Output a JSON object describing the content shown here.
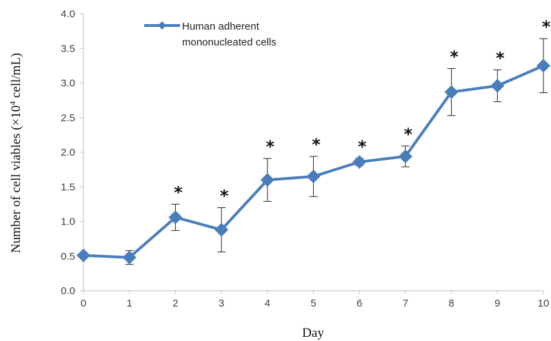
{
  "chart_data": {
    "type": "line",
    "title": "",
    "xlabel": "Day",
    "ylabel_prefix": "Number of cell viables (×10",
    "ylabel_sup": "4",
    "ylabel_suffix": " cell/mL)",
    "x": [
      0,
      1,
      2,
      3,
      4,
      5,
      6,
      7,
      8,
      9,
      10
    ],
    "xlim": [
      0,
      10
    ],
    "ylim": [
      0,
      4.0
    ],
    "x_ticks": [
      "0",
      "1",
      "2",
      "3",
      "4",
      "5",
      "6",
      "7",
      "8",
      "9",
      "10"
    ],
    "y_ticks": [
      "0.0",
      "0.5",
      "1.0",
      "1.5",
      "2.0",
      "2.5",
      "3.0",
      "3.5",
      "4.0"
    ],
    "grid": false,
    "legend_position": "top-left",
    "significance_marker": "*",
    "series": [
      {
        "name": "Human adherent mononucleated cells",
        "legend_lines": [
          "Human adherent",
          "mononucleated cells"
        ],
        "color": "#4a7ebb",
        "marker": "diamond",
        "values": [
          0.51,
          0.48,
          1.06,
          0.88,
          1.6,
          1.65,
          1.86,
          1.94,
          2.87,
          2.96,
          3.25
        ],
        "error": [
          0.0,
          0.1,
          0.19,
          0.32,
          0.31,
          0.29,
          0.05,
          0.15,
          0.34,
          0.23,
          0.39
        ],
        "significant": [
          false,
          false,
          true,
          true,
          true,
          true,
          true,
          true,
          true,
          true,
          true
        ]
      }
    ]
  }
}
